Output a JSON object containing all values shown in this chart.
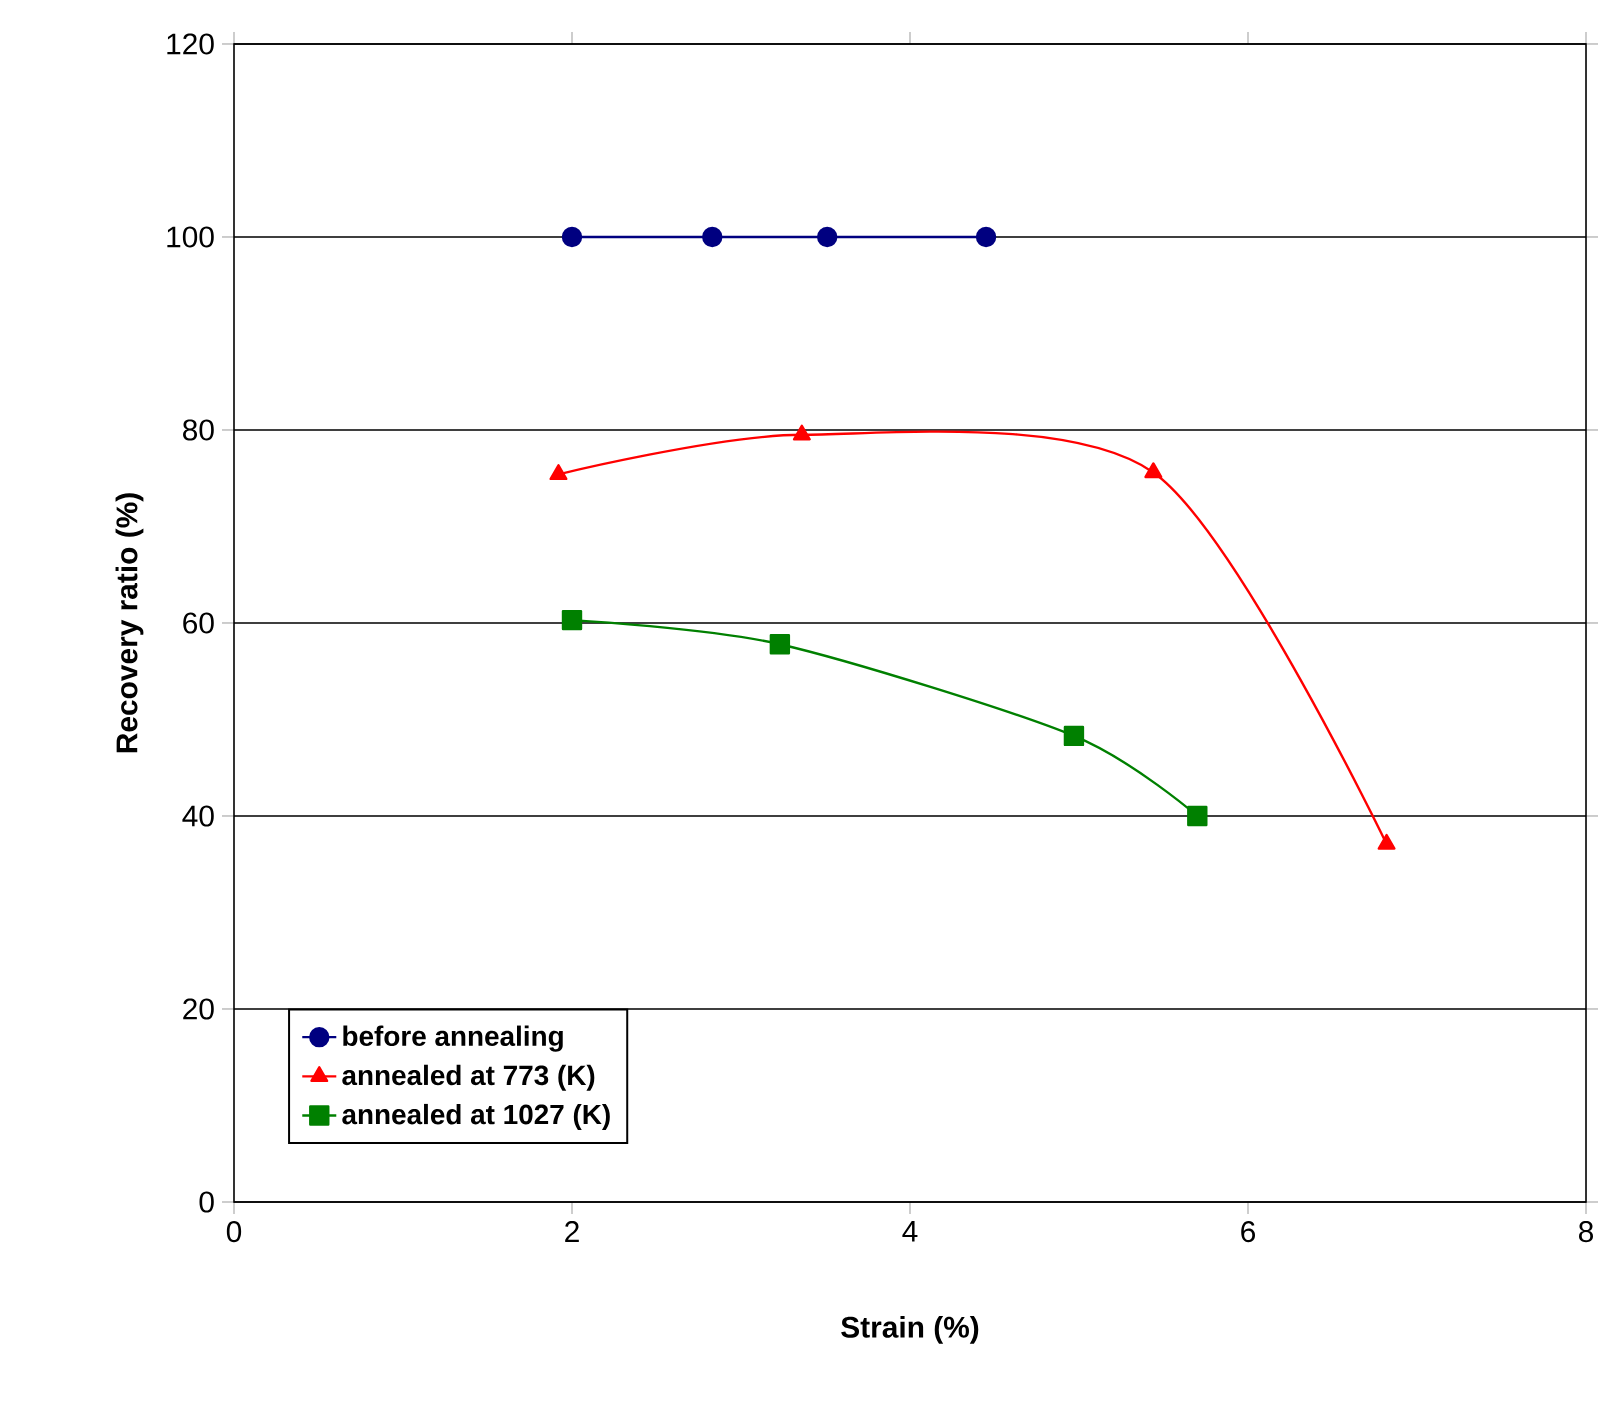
{
  "chart_data": {
    "type": "line",
    "xlabel": "Strain (%)",
    "ylabel": "Recovery ratio (%)",
    "xlim": [
      0,
      8
    ],
    "xticks": [
      0,
      2,
      4,
      6,
      8
    ],
    "ylim": [
      0,
      120
    ],
    "yticks": [
      0,
      20,
      40,
      60,
      80,
      100,
      120
    ],
    "grid": "y",
    "legend": "bottom left",
    "series": [
      {
        "name": "before annealing",
        "color": "#000080",
        "marker": "circle",
        "x": [
          2.0,
          2.83,
          3.51,
          4.45
        ],
        "values": [
          100,
          100,
          100,
          100
        ]
      },
      {
        "name": "annealed at 773 (K)",
        "color": "#ff0000",
        "marker": "triangle",
        "x": [
          1.92,
          3.36,
          5.44,
          6.82
        ],
        "values": [
          75.4,
          79.5,
          75.6,
          37.1
        ]
      },
      {
        "name": "annealed at 1027 (K)",
        "color": "#008000",
        "marker": "square",
        "x": [
          2.0,
          3.23,
          4.97,
          5.7
        ],
        "values": [
          60.3,
          57.8,
          48.3,
          40.0
        ]
      }
    ]
  }
}
